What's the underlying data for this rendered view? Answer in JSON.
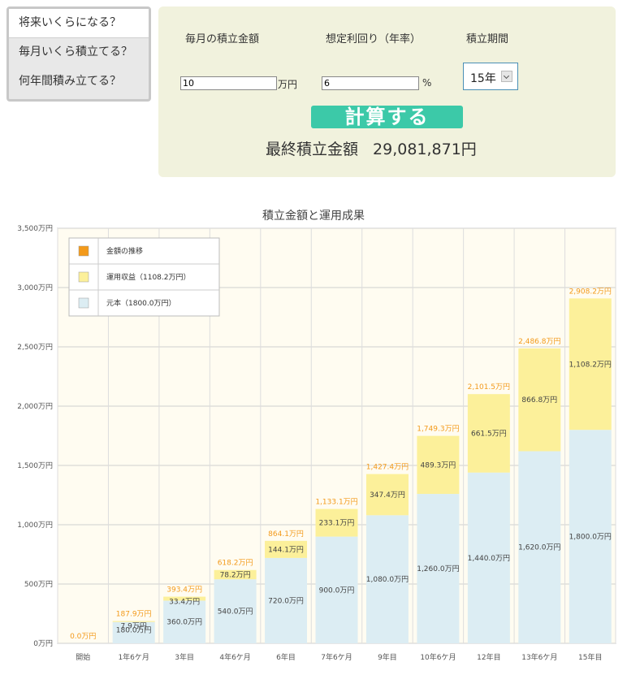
{
  "nav": {
    "items": [
      {
        "label": "将来いくらになる？",
        "active": true
      },
      {
        "label": "毎月いくら積立てる？",
        "active": false
      },
      {
        "label": "何年間積み立てる？",
        "active": false
      }
    ]
  },
  "form": {
    "monthly_label": "毎月の積立金額",
    "rate_label": "想定利回り（年率）",
    "period_label": "積立期間",
    "monthly_value": "10",
    "monthly_unit": "万円",
    "rate_value": "6",
    "rate_unit": "%",
    "period_value": "15年",
    "calc_button": "計算する",
    "result_label": "最終積立金額",
    "result_value": "29,081,871円"
  },
  "colors": {
    "principal": "#dcedf3",
    "profit": "#fcf09a",
    "total_label": "#f39a1b",
    "plot_bg": "#fffcf1",
    "button": "#3cc9a8",
    "panel": "#f1f2dd"
  },
  "chart_data": {
    "type": "bar",
    "title": "積立金額と運用成果",
    "categories": [
      "開始",
      "1年6ケ月",
      "3年目",
      "4年6ケ月",
      "6年目",
      "7年6ケ月",
      "9年目",
      "10年6ケ月",
      "12年目",
      "13年6ケ月",
      "15年目"
    ],
    "y_ticks": [
      "0万円",
      "500万円",
      "1,000万円",
      "1,500万円",
      "2,000万円",
      "2,500万円",
      "3,000万円",
      "3,500万円"
    ],
    "ylim": [
      0,
      3500
    ],
    "stacked": true,
    "series": [
      {
        "name": "元本（1800.0万円）",
        "values": [
          0,
          180,
          360,
          540,
          720,
          900,
          1080,
          1260,
          1440,
          1620,
          1800
        ],
        "labels": [
          "",
          "180.0万円",
          "360.0万円",
          "540.0万円",
          "720.0万円",
          "900.0万円",
          "1,080.0万円",
          "1,260.0万円",
          "1,440.0万円",
          "1,620.0万円",
          "1,800.0万円"
        ]
      },
      {
        "name": "運用収益（1108.2万円）",
        "values": [
          0,
          7.9,
          33.4,
          78.2,
          144.1,
          233.1,
          347.4,
          489.3,
          661.5,
          866.8,
          1108.2
        ],
        "labels": [
          "",
          "7.9万円",
          "33.4万円",
          "78.2万円",
          "144.1万円",
          "233.1万円",
          "347.4万円",
          "489.3万円",
          "661.5万円",
          "866.8万円",
          "1,108.2万円"
        ]
      }
    ],
    "totals": {
      "name": "金額の推移",
      "values": [
        0,
        187.9,
        393.4,
        618.2,
        864.1,
        1133.1,
        1427.4,
        1749.3,
        2101.5,
        2486.8,
        2908.2
      ],
      "labels": [
        "0.0万円",
        "187.9万円",
        "393.4万円",
        "618.2万円",
        "864.1万円",
        "1,133.1万円",
        "1,427.4万円",
        "1,749.3万円",
        "2,101.5万円",
        "2,486.8万円",
        "2,908.2万円"
      ]
    },
    "legend": {
      "position": "top-left"
    },
    "grid": true
  }
}
